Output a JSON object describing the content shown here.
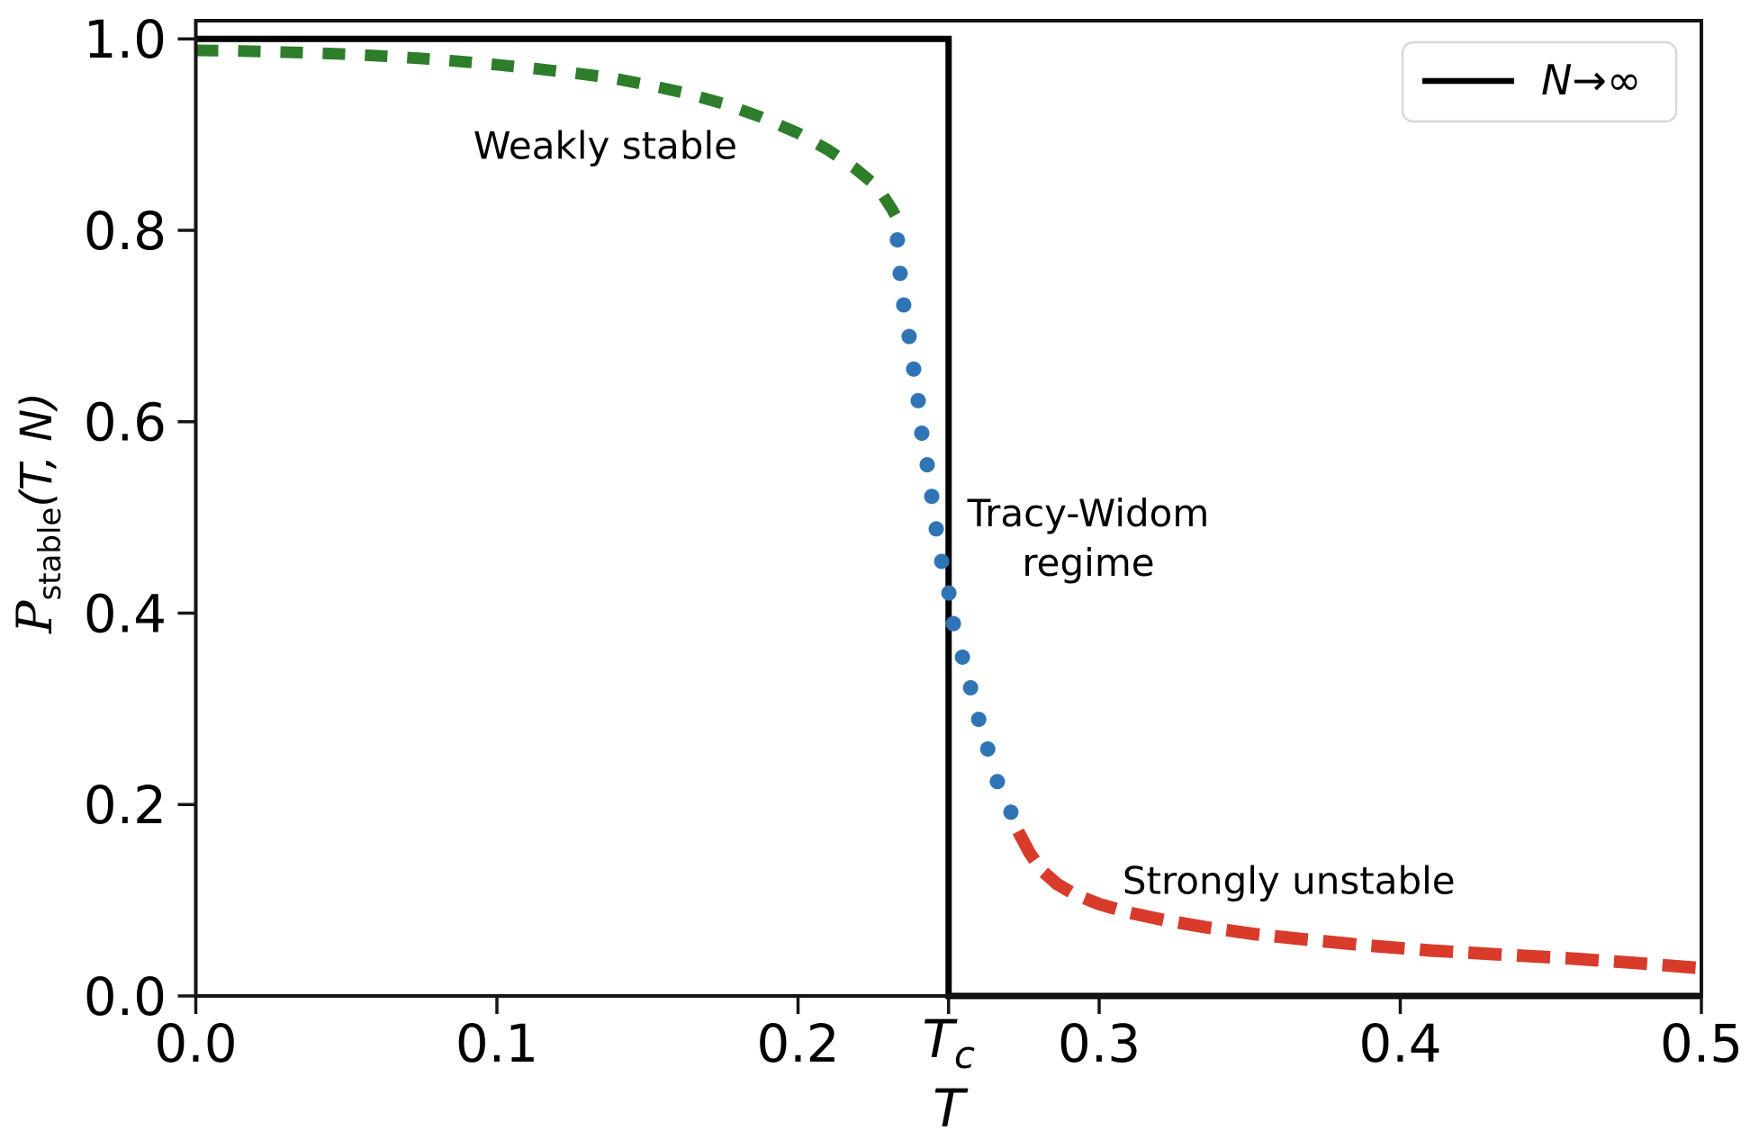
{
  "figure": {
    "background": "#ffffff"
  },
  "chart_data": {
    "type": "line",
    "title": "",
    "xlabel": "T",
    "ylabel": "P_stable(T, N)",
    "ylabel_parts": {
      "symbol": "P",
      "subscript": "stable",
      "arguments": "(T, N)"
    },
    "xlim": [
      0,
      0.5
    ],
    "ylim": [
      0,
      1.019
    ],
    "grid": false,
    "xticks": [
      {
        "value": 0.0,
        "label": "0.0"
      },
      {
        "value": 0.1,
        "label": "0.1"
      },
      {
        "value": 0.2,
        "label": "0.2"
      },
      {
        "value": 0.25,
        "label": "T",
        "sub": "c"
      },
      {
        "value": 0.3,
        "label": "0.3"
      },
      {
        "value": 0.4,
        "label": "0.4"
      },
      {
        "value": 0.5,
        "label": "0.5"
      }
    ],
    "yticks": [
      {
        "value": 0.0,
        "label": "0.0"
      },
      {
        "value": 0.2,
        "label": "0.2"
      },
      {
        "value": 0.4,
        "label": "0.4"
      },
      {
        "value": 0.6,
        "label": "0.6"
      },
      {
        "value": 0.8,
        "label": "0.8"
      },
      {
        "value": 1.0,
        "label": "1.0"
      }
    ],
    "legend": {
      "position": "upper right",
      "entries": [
        {
          "label": "N→∞",
          "label_main": "N",
          "label_suffix": "→∞",
          "color": "#000000",
          "style": "solid"
        }
      ]
    },
    "series": [
      {
        "name": "N-to-infinity-step",
        "style": "solid",
        "color": "#000000",
        "width": 7,
        "points": [
          [
            0,
            1
          ],
          [
            0.25,
            1
          ],
          [
            0.25,
            0
          ],
          [
            0.5,
            0
          ]
        ]
      },
      {
        "name": "weakly-stable",
        "style": "dashed",
        "color": "#2e7d2a",
        "width": 13,
        "dash": "25 22",
        "points": [
          [
            0.0,
            0.988
          ],
          [
            0.0125,
            0.9875
          ],
          [
            0.025,
            0.9865
          ],
          [
            0.0375,
            0.9855
          ],
          [
            0.05,
            0.984
          ],
          [
            0.0625,
            0.982
          ],
          [
            0.075,
            0.9795
          ],
          [
            0.0875,
            0.9765
          ],
          [
            0.1,
            0.973
          ],
          [
            0.1125,
            0.969
          ],
          [
            0.125,
            0.9645
          ],
          [
            0.1375,
            0.9595
          ],
          [
            0.15,
            0.952
          ],
          [
            0.1625,
            0.9435
          ],
          [
            0.175,
            0.9325
          ],
          [
            0.1875,
            0.9185
          ],
          [
            0.2,
            0.9015
          ],
          [
            0.21,
            0.884
          ],
          [
            0.219,
            0.8645
          ],
          [
            0.2265,
            0.845
          ],
          [
            0.2312,
            0.822
          ],
          [
            0.234,
            0.806
          ]
        ]
      },
      {
        "name": "tracy-widom",
        "style": "dotted",
        "color": "#2f74b5",
        "radius": 8.5,
        "points": [
          [
            0.233,
            0.79
          ],
          [
            0.2339,
            0.755
          ],
          [
            0.2351,
            0.722
          ],
          [
            0.2369,
            0.689
          ],
          [
            0.2384,
            0.655
          ],
          [
            0.2399,
            0.622
          ],
          [
            0.2411,
            0.588
          ],
          [
            0.2429,
            0.555
          ],
          [
            0.2444,
            0.522
          ],
          [
            0.2459,
            0.488
          ],
          [
            0.2477,
            0.454
          ],
          [
            0.2501,
            0.421
          ],
          [
            0.2516,
            0.389
          ],
          [
            0.2546,
            0.354
          ],
          [
            0.2573,
            0.322
          ],
          [
            0.26,
            0.289
          ],
          [
            0.263,
            0.258
          ],
          [
            0.2662,
            0.224
          ],
          [
            0.2707,
            0.192
          ]
        ]
      },
      {
        "name": "strongly-unstable",
        "style": "dashed",
        "color": "#d93b2b",
        "width": 14,
        "dash": "37 17",
        "points": [
          [
            0.2731,
            0.172
          ],
          [
            0.277,
            0.149
          ],
          [
            0.281,
            0.131
          ],
          [
            0.286,
            0.117
          ],
          [
            0.292,
            0.106
          ],
          [
            0.3,
            0.096
          ],
          [
            0.31,
            0.087
          ],
          [
            0.322,
            0.079
          ],
          [
            0.336,
            0.0715
          ],
          [
            0.352,
            0.0645
          ],
          [
            0.37,
            0.0585
          ],
          [
            0.39,
            0.0525
          ],
          [
            0.41,
            0.0475
          ],
          [
            0.432,
            0.0435
          ],
          [
            0.455,
            0.0395
          ],
          [
            0.478,
            0.0345
          ],
          [
            0.5,
            0.029
          ]
        ]
      }
    ],
    "annotations": [
      {
        "lines": [
          "Weakly stable"
        ],
        "color": "#2e7d2a",
        "t": 0.136,
        "p": 0.889
      },
      {
        "lines": [
          "Tracy-Widom",
          "regime"
        ],
        "color": "#3579c4",
        "t": 0.2964,
        "p": 0.505
      },
      {
        "lines": [
          "Strongly unstable"
        ],
        "color": "#dc3c2c",
        "t": 0.363,
        "p": 0.121
      }
    ]
  }
}
